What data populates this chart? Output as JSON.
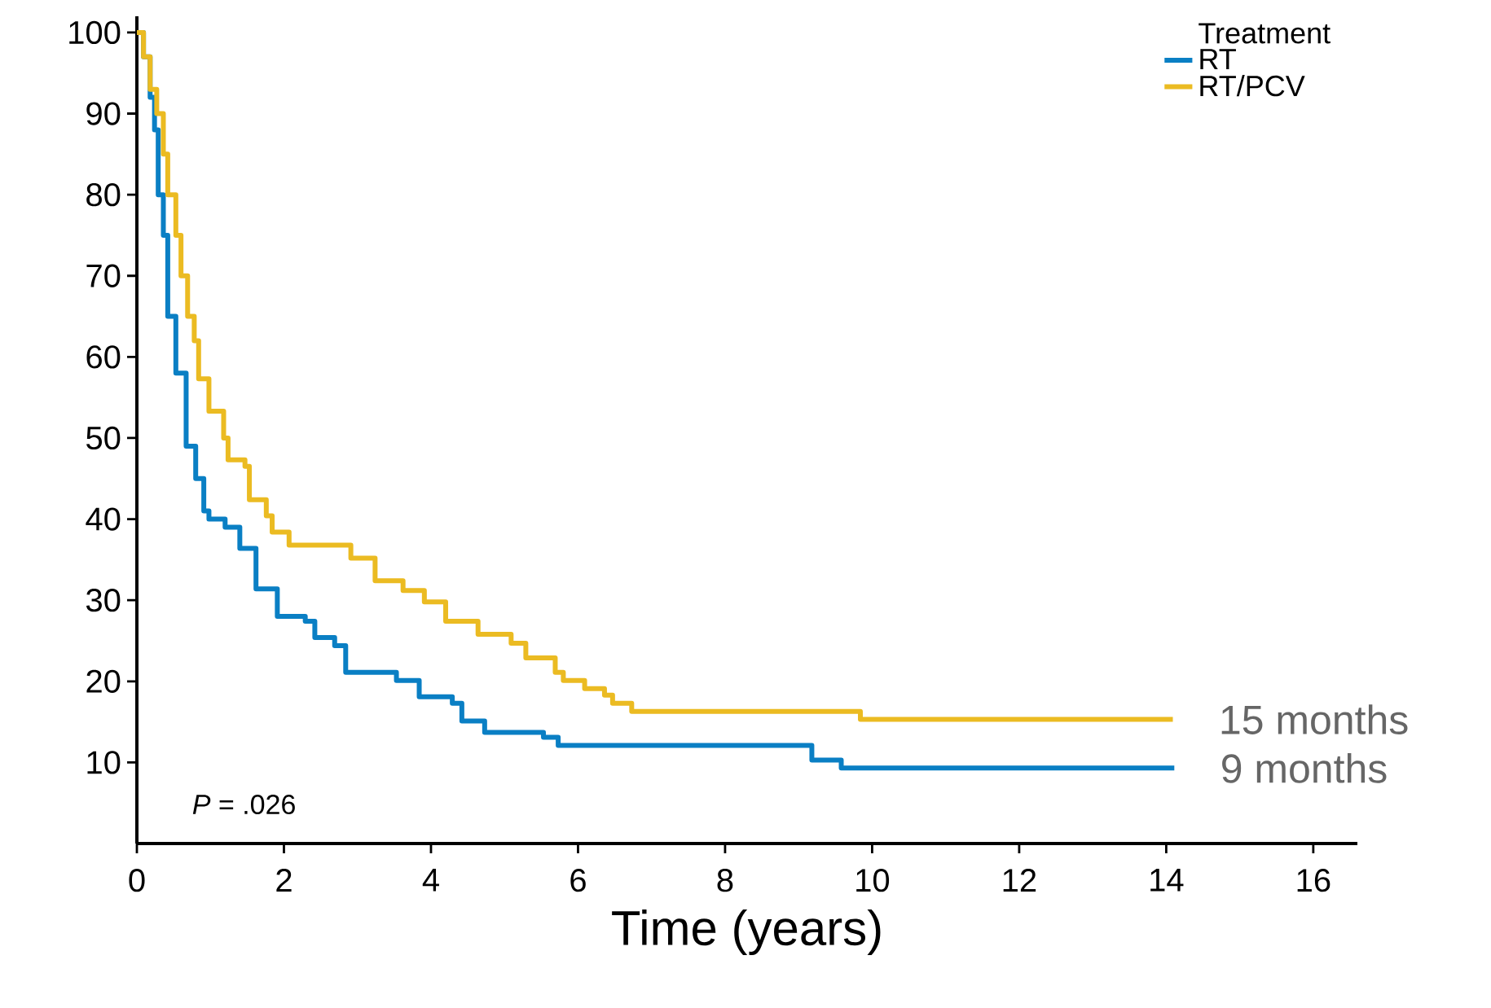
{
  "chart_data": {
    "type": "step",
    "xlabel": "Time (years)",
    "legend_title": "Treatment",
    "legend": "top right",
    "grid": false,
    "line_style": "solid",
    "marker": "none",
    "xlim": [
      0,
      16.6
    ],
    "ylim": [
      0,
      102
    ],
    "xticks": [
      0,
      2,
      4,
      6,
      8,
      10,
      12,
      14,
      16
    ],
    "yticks": [
      10,
      20,
      30,
      40,
      50,
      60,
      70,
      80,
      90,
      100
    ],
    "series": [
      {
        "name": "RT",
        "color": "#0a7fc4",
        "x": [
          0,
          0.09,
          0.18,
          0.24,
          0.29,
          0.36,
          0.42,
          0.53,
          0.67,
          0.8,
          0.91,
          0.98,
          1.2,
          1.4,
          1.62,
          1.91,
          2.29,
          2.42,
          2.69,
          2.84,
          3.53,
          3.84,
          4.29,
          4.42,
          4.73,
          5.53,
          5.73,
          9.18,
          9.58,
          14.11
        ],
        "values": [
          100,
          97,
          92,
          88,
          80,
          75,
          65,
          58,
          49,
          45,
          41,
          40,
          39,
          36.4,
          31.4,
          28,
          27.4,
          25.4,
          24.4,
          21.1,
          20.1,
          18.1,
          17.3,
          15.1,
          13.7,
          13.1,
          12.1,
          10.3,
          9.3,
          9.3
        ]
      },
      {
        "name": "RT/PCV",
        "color": "#ebbb22",
        "x": [
          0,
          0.09,
          0.18,
          0.27,
          0.36,
          0.42,
          0.53,
          0.6,
          0.69,
          0.78,
          0.84,
          0.98,
          1.18,
          1.24,
          1.47,
          1.53,
          1.76,
          1.84,
          2.07,
          2.91,
          3.24,
          3.62,
          3.91,
          4.2,
          4.64,
          5.09,
          5.29,
          5.69,
          5.8,
          6.09,
          6.36,
          6.47,
          6.73,
          9.84,
          14.09
        ],
        "values": [
          100,
          97,
          93,
          90,
          85,
          80,
          75,
          70,
          65,
          62,
          57.3,
          53.3,
          50,
          47.3,
          46.5,
          42.4,
          40.4,
          38.4,
          36.8,
          35.2,
          32.4,
          31.2,
          29.8,
          27.4,
          25.8,
          24.7,
          22.9,
          21.1,
          20.1,
          19.1,
          18.3,
          17.3,
          16.3,
          15.3,
          15.3
        ]
      }
    ],
    "annotations": [
      "*P* = .026",
      {
        "text": "15 months",
        "x": 14.09,
        "y": 15.3
      },
      {
        "text": "9 months",
        "x": 14.11,
        "y": 9.3
      }
    ]
  }
}
